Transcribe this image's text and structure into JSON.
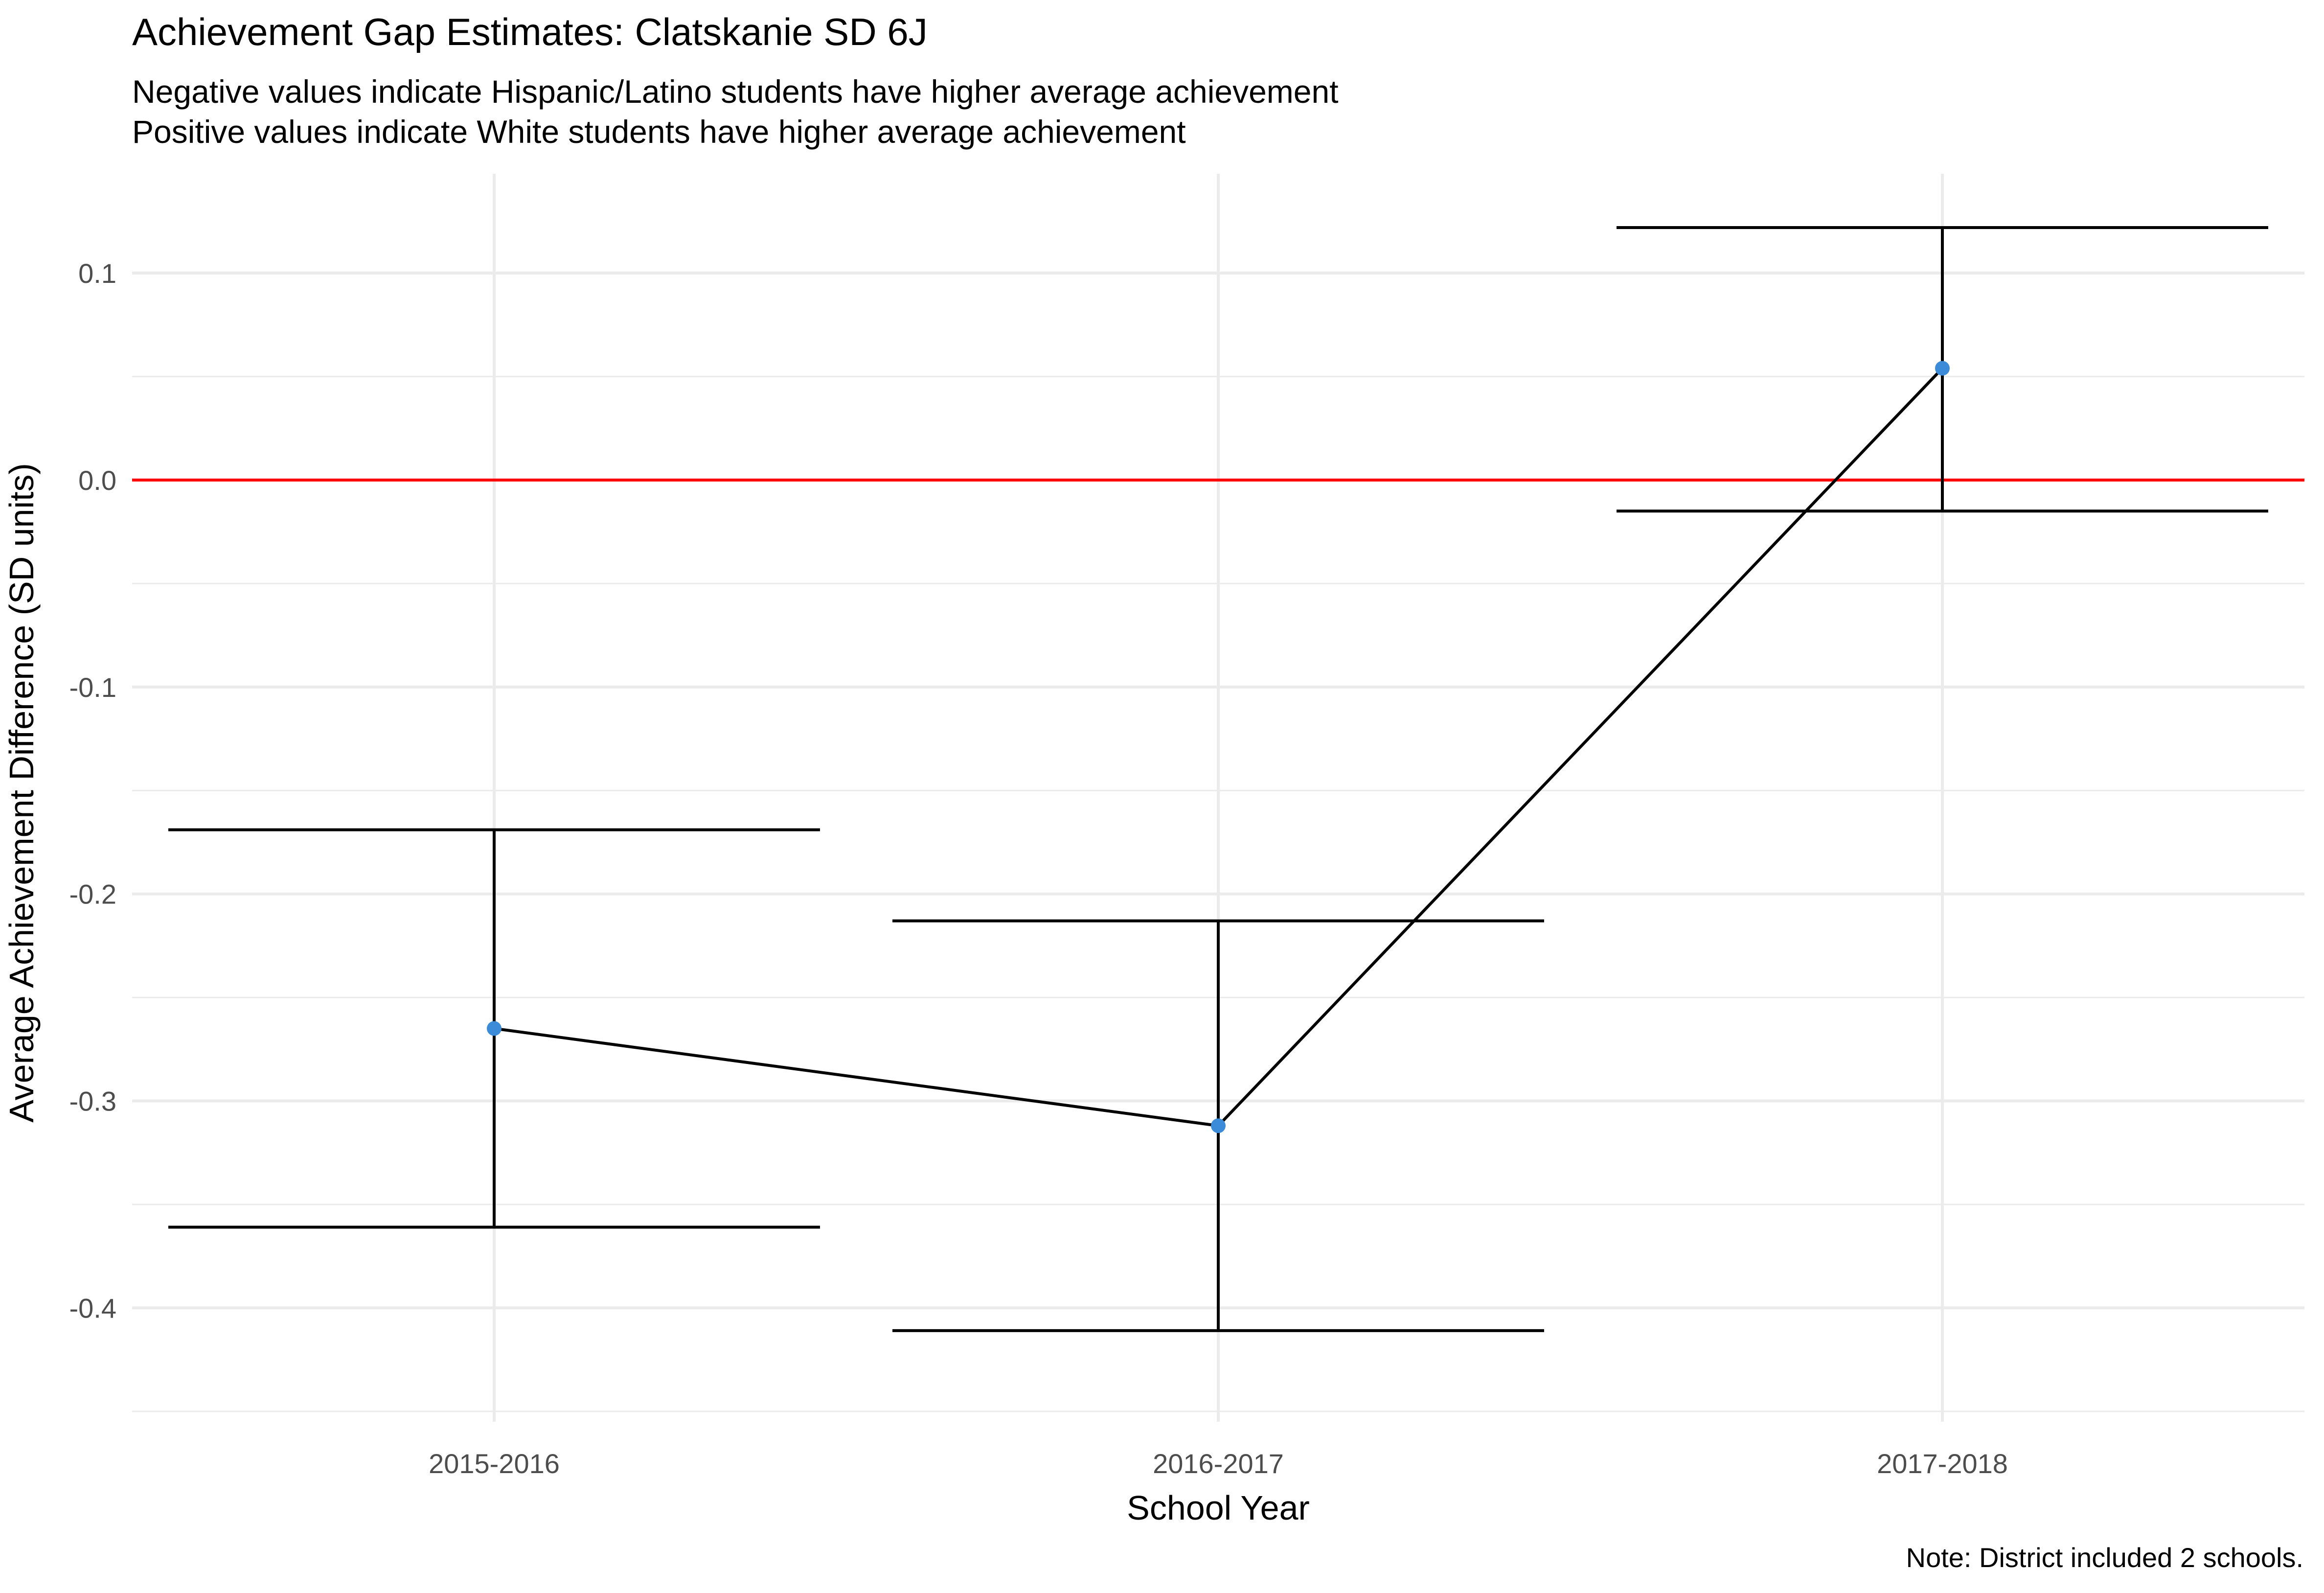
{
  "chart_data": {
    "type": "line",
    "title": "Achievement Gap Estimates: Clatskanie SD 6J",
    "subtitle_lines": [
      "Negative values indicate Hispanic/Latino students have higher average achievement",
      "Positive values indicate White students have higher average achievement"
    ],
    "xlabel": "School Year",
    "ylabel": "Average Achievement Difference (SD units)",
    "caption": "Note: District included 2 schools.",
    "categories": [
      "2015-2016",
      "2016-2017",
      "2017-2018"
    ],
    "series": [
      {
        "values": [
          -0.265,
          -0.312,
          0.054
        ],
        "lower": [
          -0.361,
          -0.411,
          -0.015
        ],
        "upper": [
          -0.169,
          -0.213,
          0.122
        ]
      }
    ],
    "reference_line": {
      "y": 0.0,
      "color": "#FF0000"
    },
    "ylim": [
      -0.455,
      0.148
    ],
    "yticks": [
      0.1,
      0.0,
      -0.1,
      -0.2,
      -0.3,
      -0.4
    ],
    "ytick_labels": [
      "0.1",
      "0.0",
      "-0.1",
      "-0.2",
      "-0.3",
      "-0.4"
    ],
    "grid": true,
    "legend": "none",
    "colors": {
      "point": "#3C8BD8",
      "line": "#000000",
      "errorbar": "#000000",
      "grid": "#EBEBEB",
      "text": "#000000",
      "tick_text": "#4D4D4D"
    }
  }
}
